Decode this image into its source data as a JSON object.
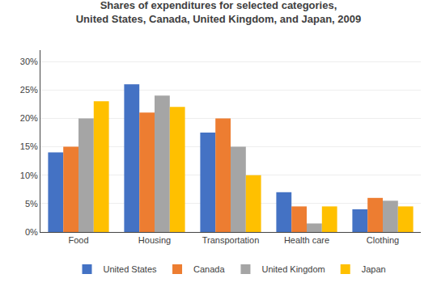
{
  "chart_data": {
    "type": "bar",
    "title": "Shares of expenditures for selected categories,\nUnited States, Canada, United Kingdom, and Japan, 2009",
    "categories": [
      "Food",
      "Housing",
      "Transportation",
      "Health care",
      "Clothing"
    ],
    "series": [
      {
        "name": "United States",
        "color": "#4472C4",
        "values": [
          14,
          26,
          17.5,
          7,
          4
        ]
      },
      {
        "name": "Canada",
        "color": "#ED7D31",
        "values": [
          15,
          21,
          20,
          4.5,
          6
        ]
      },
      {
        "name": "United Kingdom",
        "color": "#A5A5A5",
        "values": [
          20,
          24,
          15,
          1.5,
          5.5
        ]
      },
      {
        "name": "Japan",
        "color": "#FFC000",
        "values": [
          23,
          22,
          10,
          4.5,
          4.5
        ]
      }
    ],
    "ylim": [
      0,
      32
    ],
    "yticks": [
      {
        "value": 0,
        "label": "0%"
      },
      {
        "value": 5,
        "label": "5%"
      },
      {
        "value": 10,
        "label": "10%"
      },
      {
        "value": 15,
        "label": "15%"
      },
      {
        "value": 20,
        "label": "20%"
      },
      {
        "value": 25,
        "label": "25%"
      },
      {
        "value": 30,
        "label": "30%"
      }
    ],
    "grid": true,
    "legend": "bottom"
  }
}
